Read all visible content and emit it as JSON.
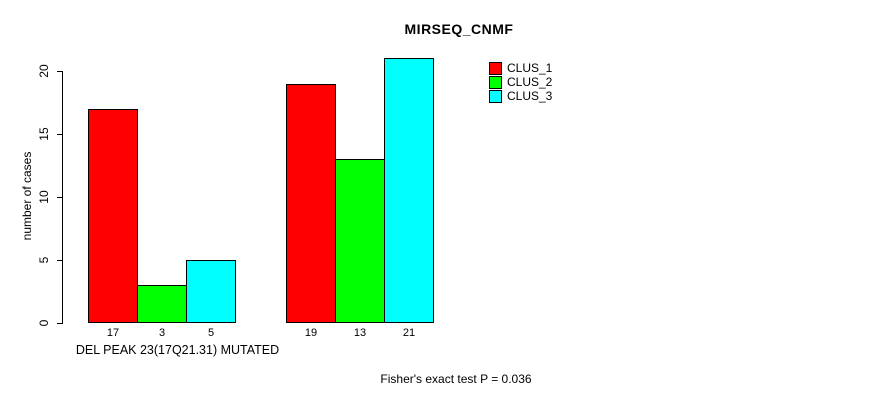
{
  "chart_data": {
    "type": "bar",
    "title": "MIRSEQ_CNMF",
    "ylabel": "number of cases",
    "xlabel": "DEL PEAK 23(17Q21.31) MUTATED",
    "annotation": "Fisher's exact test P = 0.036",
    "ylim": [
      0,
      21
    ],
    "yticks": [
      0,
      5,
      10,
      15,
      20
    ],
    "grid": false,
    "legend_position": "top-right",
    "bar_value_labels_shown": true,
    "categories": [
      "",
      ""
    ],
    "series": [
      {
        "name": "CLUS_1",
        "color": "#ff0000",
        "values": [
          17,
          19
        ]
      },
      {
        "name": "CLUS_2",
        "color": "#00ff00",
        "values": [
          3,
          13
        ]
      },
      {
        "name": "CLUS_3",
        "color": "#00ffff",
        "values": [
          5,
          21
        ]
      }
    ]
  }
}
